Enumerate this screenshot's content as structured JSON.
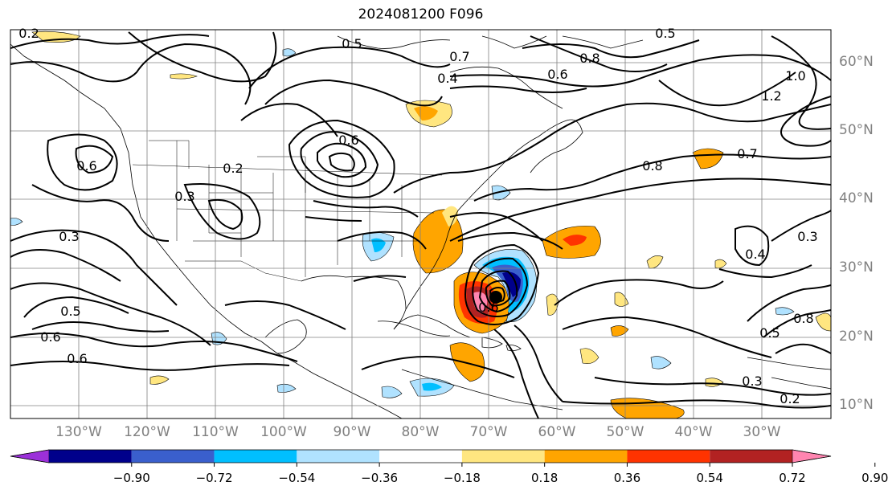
{
  "title": "2024081200 F096",
  "lat_labels": [
    "60°N",
    "50°N",
    "40°N",
    "30°N",
    "20°N",
    "10°N"
  ],
  "lon_labels": [
    "130°W",
    "120°W",
    "110°W",
    "100°W",
    "90°W",
    "80°W",
    "70°W",
    "60°W",
    "50°W",
    "40°W",
    "30°W"
  ],
  "colorbar": {
    "tick_labels": [
      "−0.90",
      "−0.72",
      "−0.54",
      "−0.36",
      "−0.18",
      "0.18",
      "0.36",
      "0.54",
      "0.72",
      "0.90"
    ],
    "colors": [
      "#9b30d9",
      "#00008b",
      "#3a5fcd",
      "#00bfff",
      "#b0e2ff",
      "#ffffff",
      "#ffe680",
      "#ffa500",
      "#ff3300",
      "#b22222",
      "#ff85b0"
    ]
  },
  "contour_labels": [
    "0.2",
    "0.5",
    "0.7",
    "0.4",
    "0.6",
    "0.8",
    "0.5",
    "0.2",
    "0.3",
    "0.6",
    "0.3",
    "1.2",
    "1.0",
    "0.7",
    "0.8",
    "0.4",
    "0.5",
    "0.6",
    "0.3",
    "0.2",
    "0.8",
    "0.6",
    "0.5",
    "0.6",
    "0.3",
    "0.6"
  ],
  "fill_colors": {
    "orange": "#ffa500",
    "yellow": "#ffe680",
    "red": "#ff3300",
    "darkred": "#b22222",
    "pink": "#ff85b0",
    "lightblue": "#b0e2ff",
    "blue": "#00bfff",
    "medblue": "#3a5fcd",
    "navy": "#00008b"
  }
}
